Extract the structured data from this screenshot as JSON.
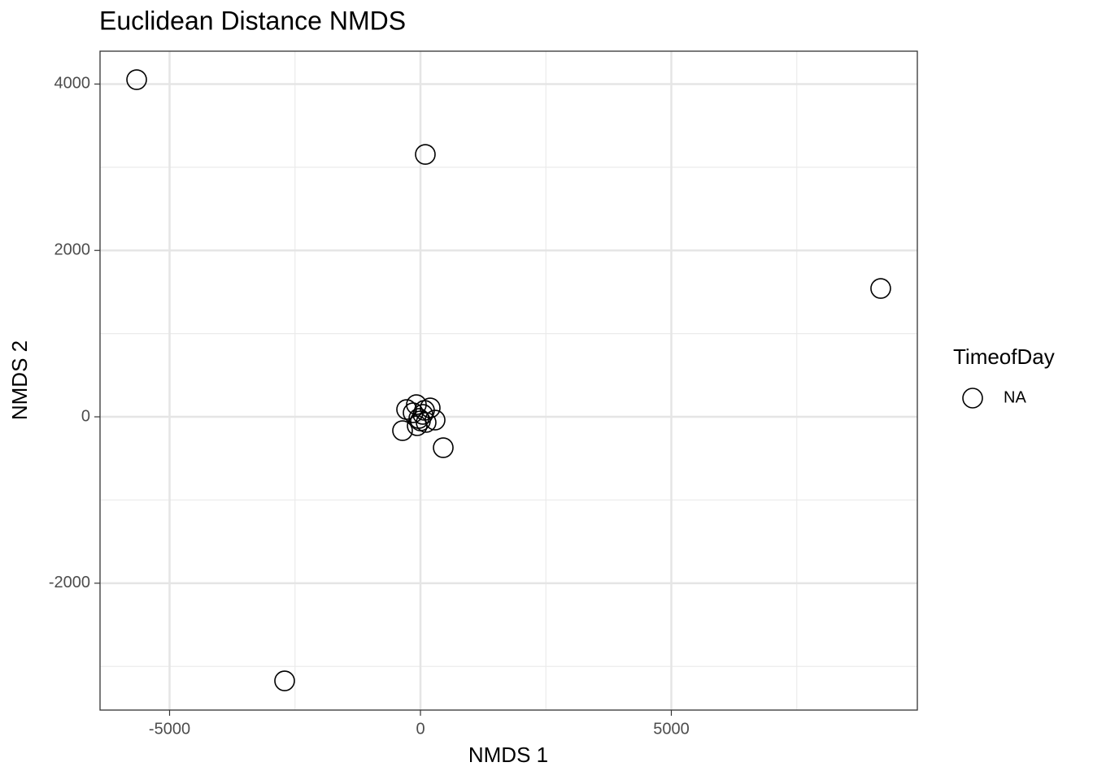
{
  "chart_data": {
    "type": "scatter",
    "title": "Euclidean Distance NMDS",
    "x_label": "NMDS 1",
    "y_label": "NMDS 2",
    "legend_title": "TimeofDay",
    "legend_position": "right",
    "series": [
      {
        "name": "NA",
        "color": "#000000",
        "x": [
          -5656,
          97,
          9173,
          -2707,
          454,
          -357,
          -276,
          -81,
          194,
          49,
          -32,
          113,
          292,
          -146,
          0,
          -65,
          81
        ],
        "y": [
          4053,
          3154,
          1543,
          -3174,
          -371,
          -166,
          88,
          146,
          107,
          29,
          -20,
          -68,
          -39,
          49,
          -49,
          -107,
          78
        ]
      }
    ],
    "xlim": [
      -6386,
      9903
    ],
    "ylim": [
      -3525,
      4395
    ],
    "xticks": [
      -5000,
      0,
      5000
    ],
    "yticks": [
      -2000,
      0,
      2000,
      4000
    ],
    "xminor": [
      -2500,
      2500,
      7500
    ],
    "yminor": [
      -3000,
      -1000,
      1000,
      3000
    ],
    "grid": true
  }
}
